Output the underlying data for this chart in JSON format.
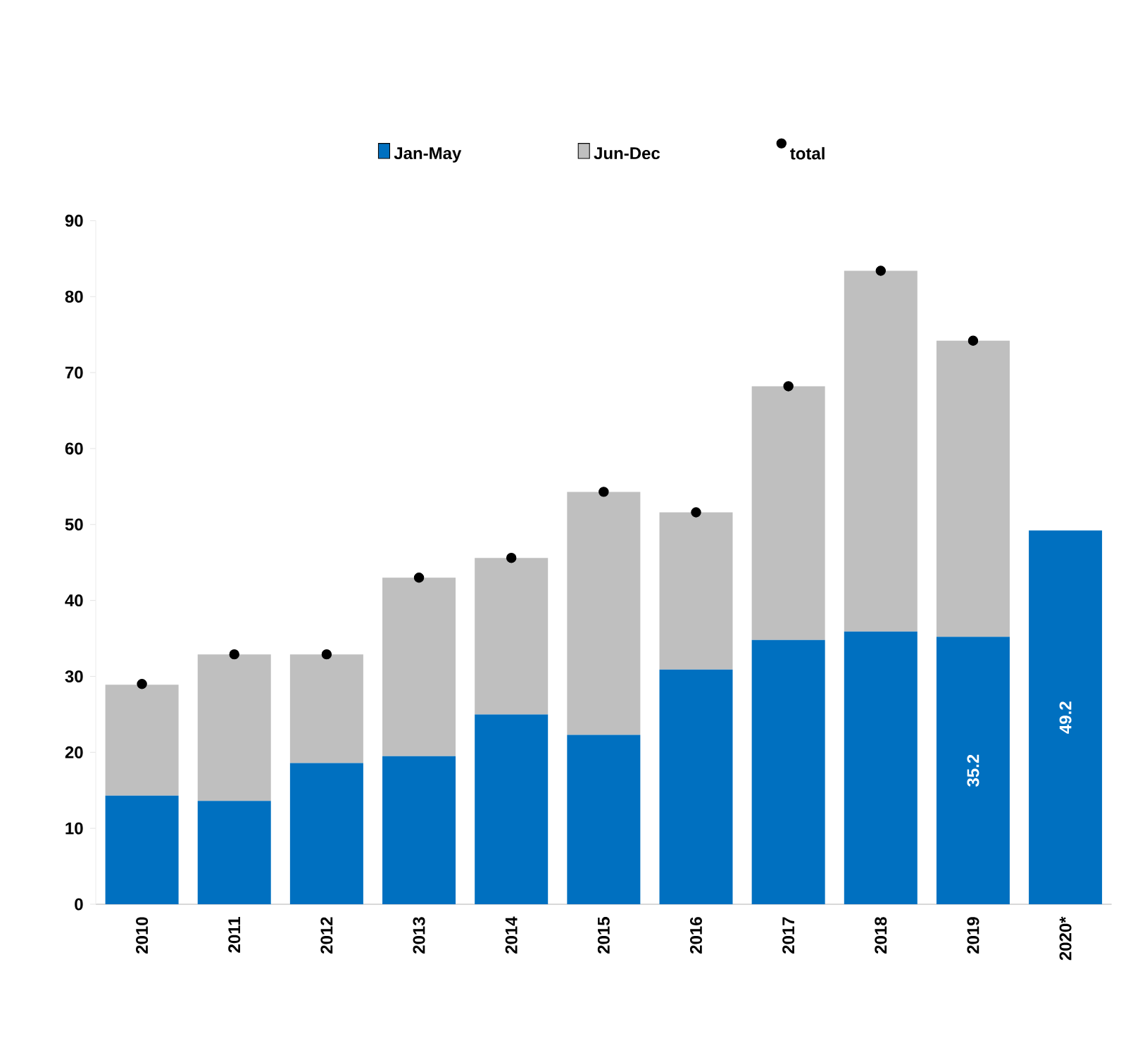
{
  "chart_data": {
    "type": "bar",
    "stacked": true,
    "categories": [
      "2010",
      "2011",
      "2012",
      "2013",
      "2014",
      "2015",
      "2016",
      "2017",
      "2018",
      "2019",
      "2020*"
    ],
    "series": [
      {
        "name": "Jan-May",
        "color": "#0070c0",
        "values": [
          14.3,
          13.6,
          18.6,
          19.5,
          25.0,
          22.3,
          30.9,
          34.8,
          35.9,
          35.2,
          49.2
        ],
        "value_labels": [
          null,
          null,
          null,
          null,
          null,
          null,
          null,
          null,
          null,
          "35.2",
          "49.2"
        ]
      },
      {
        "name": "Jun-Dec",
        "color": "#bfbfbf",
        "values": [
          14.6,
          19.3,
          14.3,
          23.5,
          20.6,
          32.0,
          20.7,
          33.4,
          47.5,
          39.0,
          null
        ]
      },
      {
        "name": "total",
        "type": "scatter",
        "color": "#000000",
        "values": [
          29.0,
          32.9,
          32.9,
          43.0,
          45.6,
          54.3,
          51.6,
          68.2,
          83.4,
          74.2,
          null
        ]
      }
    ],
    "ylim": [
      0,
      90
    ],
    "yticks": [
      0,
      10,
      20,
      30,
      40,
      50,
      60,
      70,
      80,
      90
    ],
    "legend": "top"
  }
}
